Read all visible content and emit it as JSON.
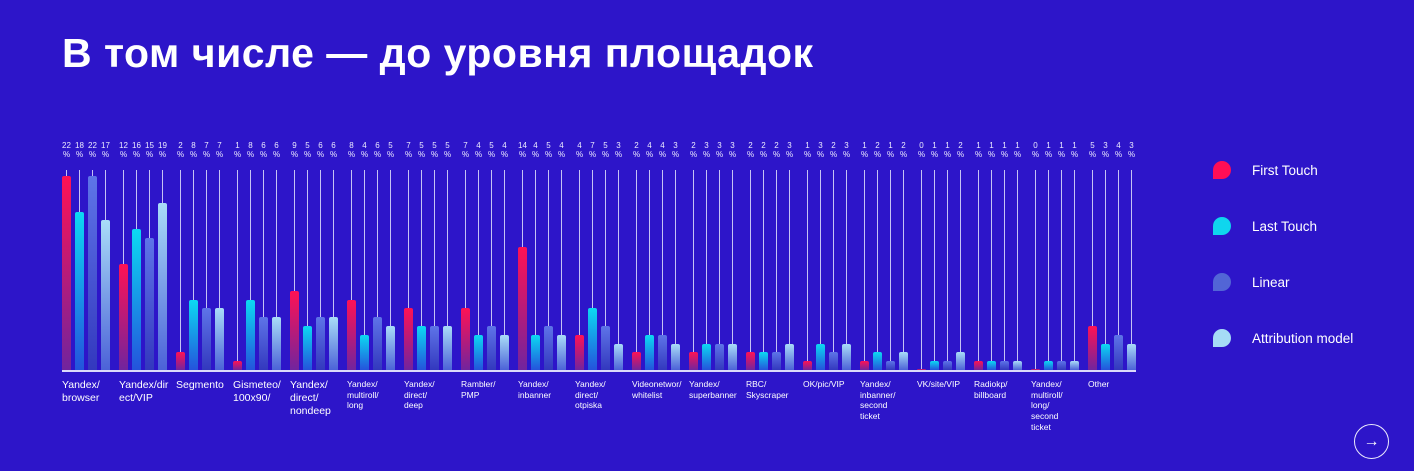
{
  "title": "В том числе — до уровня площадок",
  "background_color": "#2D15C9",
  "legend": {
    "items": [
      {
        "label": "First Touch",
        "color": "#FF0E55"
      },
      {
        "label": "Last Touch",
        "color": "#0FD6EE"
      },
      {
        "label": "Linear",
        "color": "#5265D6"
      },
      {
        "label": "Attribution model",
        "color": "#A6DCF6"
      }
    ]
  },
  "chart_data": {
    "type": "bar",
    "title": "В том числе — до уровня площадок",
    "unit": "%",
    "ylim": [
      0,
      22
    ],
    "grid": false,
    "legend_position": "right",
    "categories": [
      "Yandex/\nbrowser",
      "Yandex/dir\nect/VIP",
      "Segmento",
      "Gismeteo/\n100x90/",
      "Yandex/\ndirect/\nnondeep",
      "Yandex/\nmultiroll/\nlong",
      "Yandex/\ndirect/\ndeep",
      "Rambler/\nPMP",
      "Yandex/\ninbanner",
      "Yandex/\ndirect/\notpiska",
      "Videonetwor/\nwhitelist",
      "Yandex/\nsuperbanner",
      "RBC/\nSkyscraper",
      "OK/pic/VIP",
      "Yandex/\ninbanner/\nsecond ticket",
      "VK/site/VIP",
      "Radiokp/\nbillboard",
      "Yandex/\nmultiroll/\nlong/\nsecond ticket",
      "Other"
    ],
    "series": [
      {
        "name": "First Touch",
        "color_top": "#FF1254",
        "color_bottom": "#71249E",
        "values": [
          22,
          12,
          2,
          1,
          9,
          8,
          7,
          7,
          14,
          4,
          2,
          2,
          2,
          1,
          1,
          0,
          1,
          0,
          5
        ]
      },
      {
        "name": "Last Touch",
        "color_top": "#0CD9F2",
        "color_bottom": "#2453DC",
        "values": [
          18,
          16,
          8,
          8,
          5,
          4,
          5,
          4,
          4,
          7,
          4,
          3,
          2,
          3,
          2,
          1,
          1,
          1,
          3
        ]
      },
      {
        "name": "Linear",
        "color_top": "#5E74E8",
        "color_bottom": "#3338BE",
        "values": [
          22,
          15,
          7,
          6,
          6,
          6,
          5,
          5,
          5,
          5,
          4,
          3,
          2,
          2,
          1,
          1,
          1,
          1,
          4
        ]
      },
      {
        "name": "Attribution model",
        "color_top": "#A9DCF8",
        "color_bottom": "#4C62D8",
        "values": [
          17,
          19,
          7,
          6,
          6,
          5,
          5,
          4,
          4,
          3,
          3,
          3,
          3,
          3,
          2,
          2,
          1,
          1,
          3
        ]
      }
    ]
  },
  "nav": {
    "arrow_icon": "→"
  }
}
